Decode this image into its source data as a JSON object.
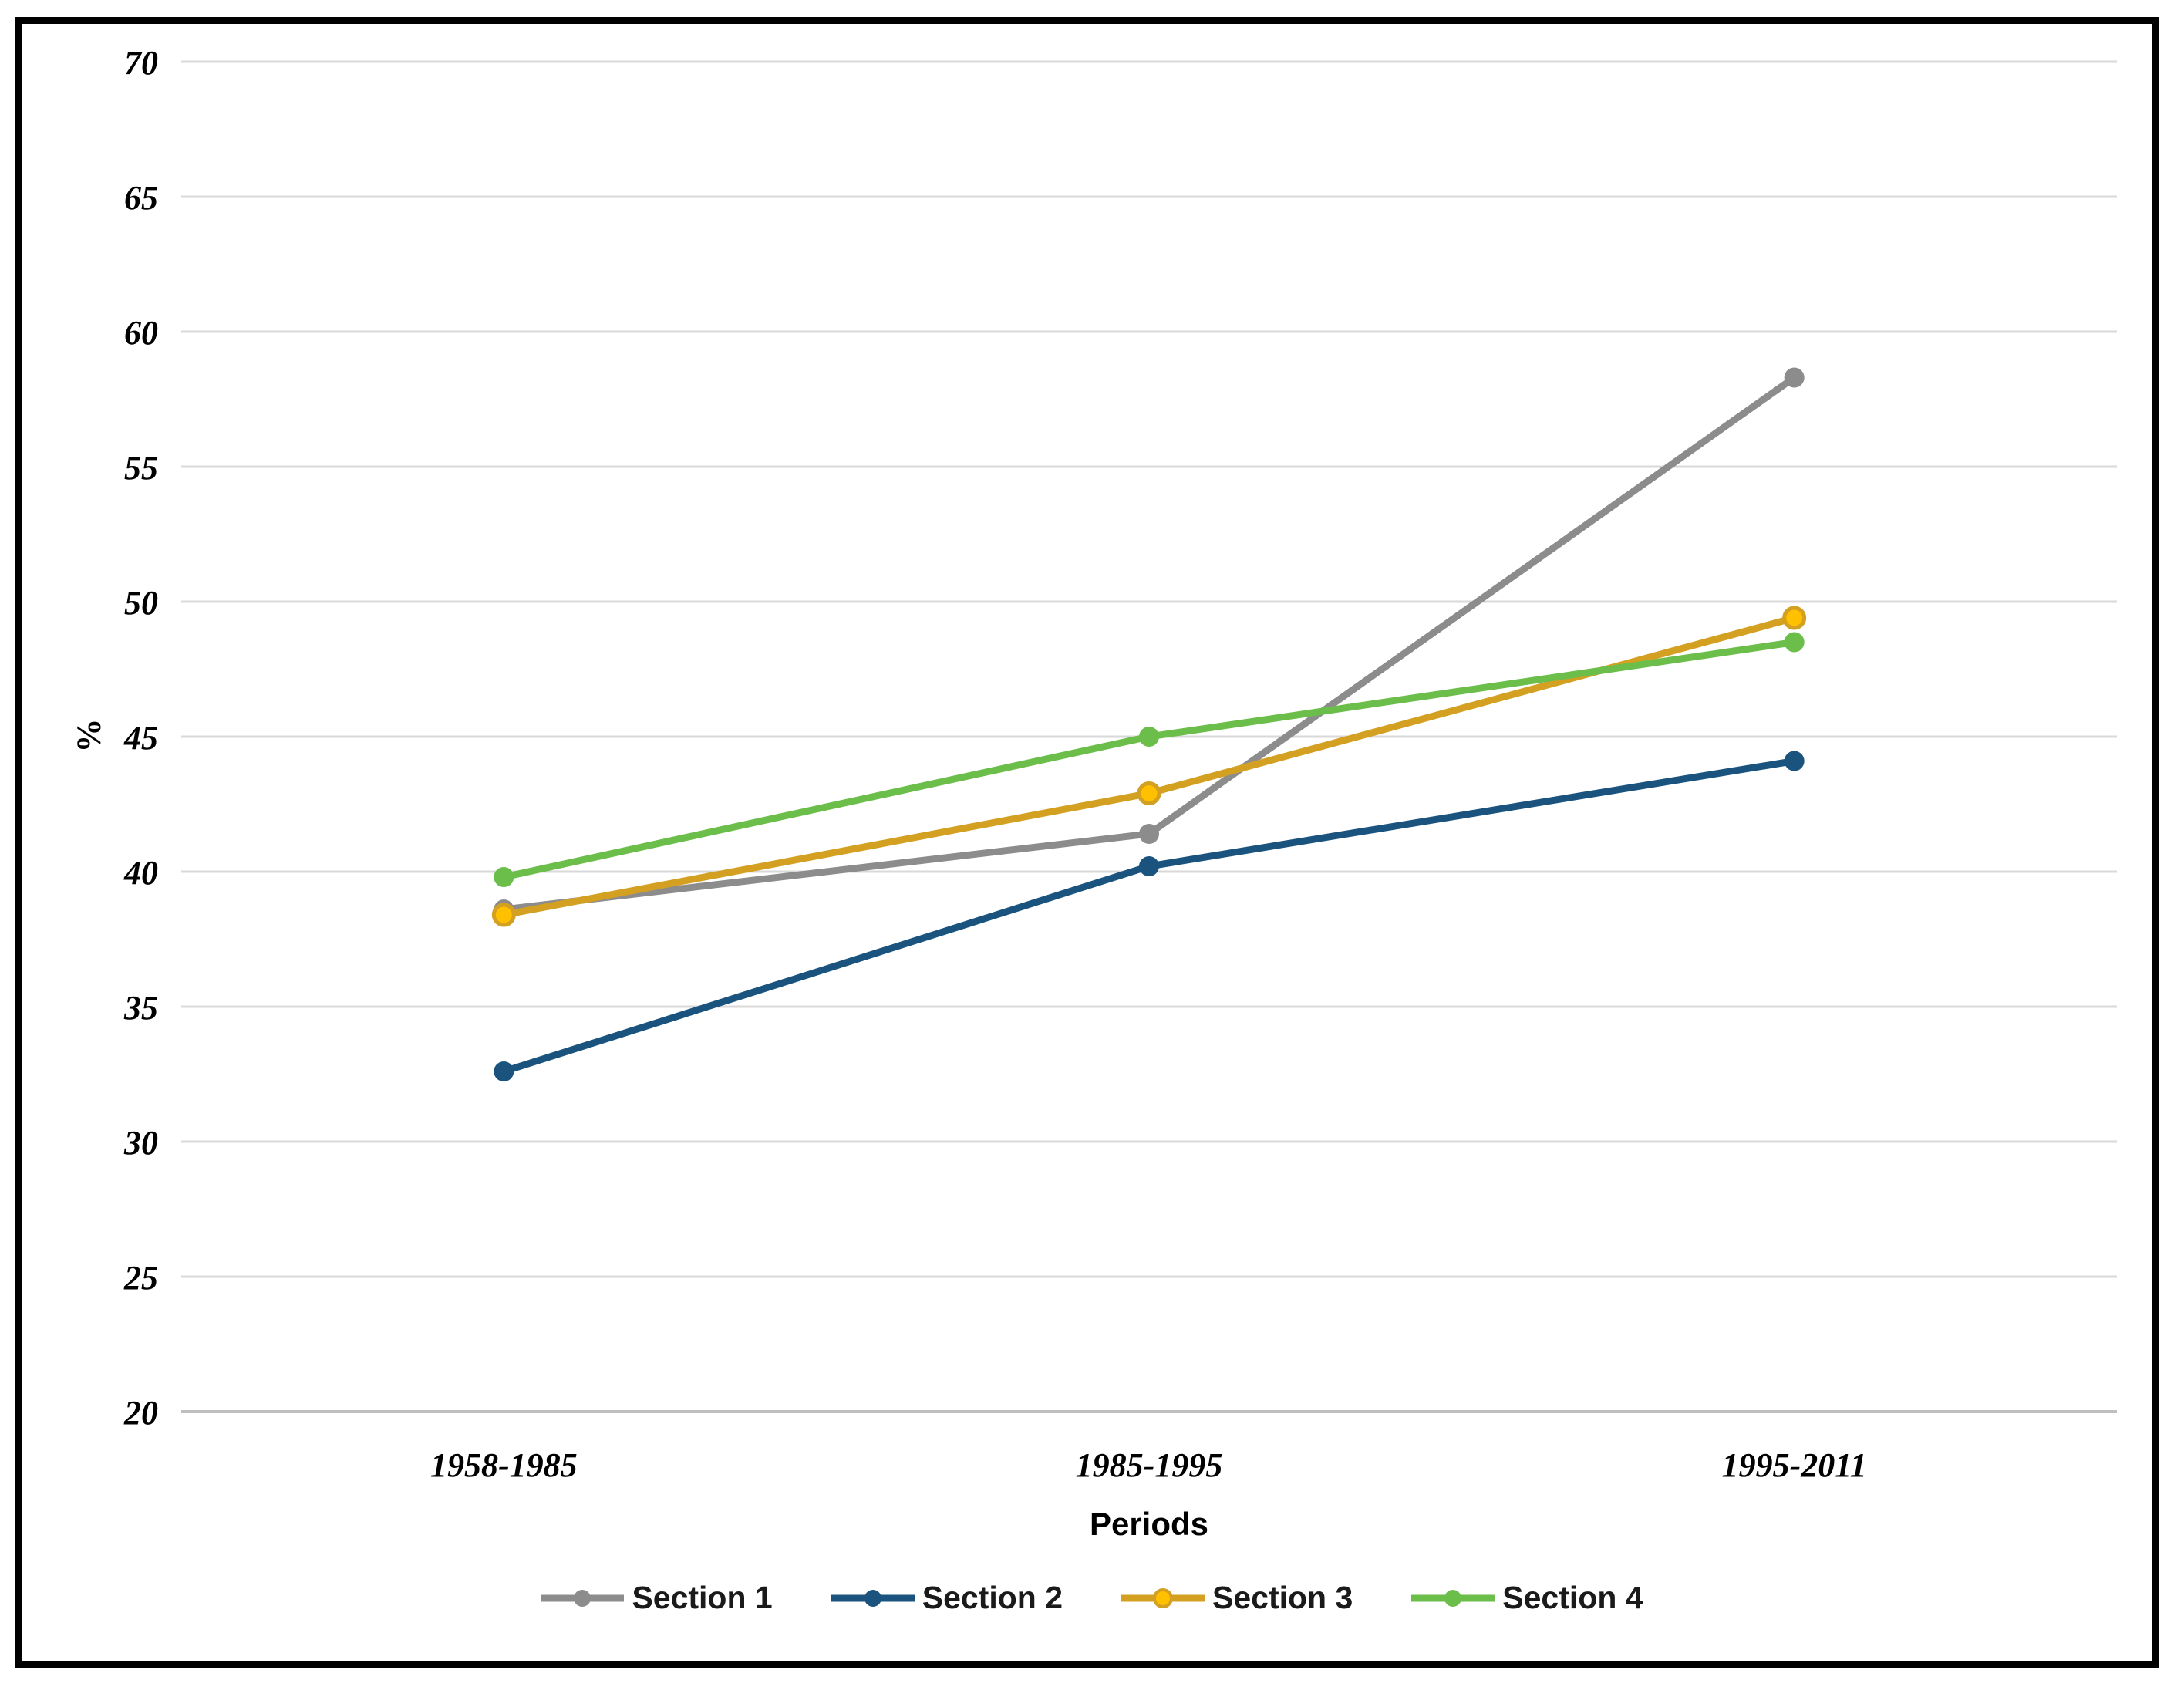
{
  "chart_data": {
    "type": "line",
    "categories": [
      "1958-1985",
      "1985-1995",
      "1995-2011"
    ],
    "series": [
      {
        "name": "Section 1",
        "values": [
          38.6,
          41.4,
          58.3
        ],
        "color": "#8C8C8C",
        "marker_color": "#8C8C8C"
      },
      {
        "name": "Section 2",
        "values": [
          32.6,
          40.2,
          44.1
        ],
        "color": "#1A547E",
        "marker_color": "#1A547E"
      },
      {
        "name": "Section 3",
        "values": [
          38.4,
          42.9,
          49.4
        ],
        "color": "#D3A021",
        "marker_color": "#FFC000"
      },
      {
        "name": "Section 4",
        "values": [
          39.8,
          45.0,
          48.5
        ],
        "color": "#6BBE4A",
        "marker_color": "#6BBE4A"
      }
    ],
    "title": "",
    "xlabel": "Periods",
    "ylabel": "%",
    "ylim": [
      20,
      70
    ],
    "ytick_step": 5,
    "grid": true,
    "legend_position": "bottom",
    "gridline_color": "#D9D9D9",
    "axisline_color": "#BFBFBF",
    "tick_label_color": "#000000"
  }
}
